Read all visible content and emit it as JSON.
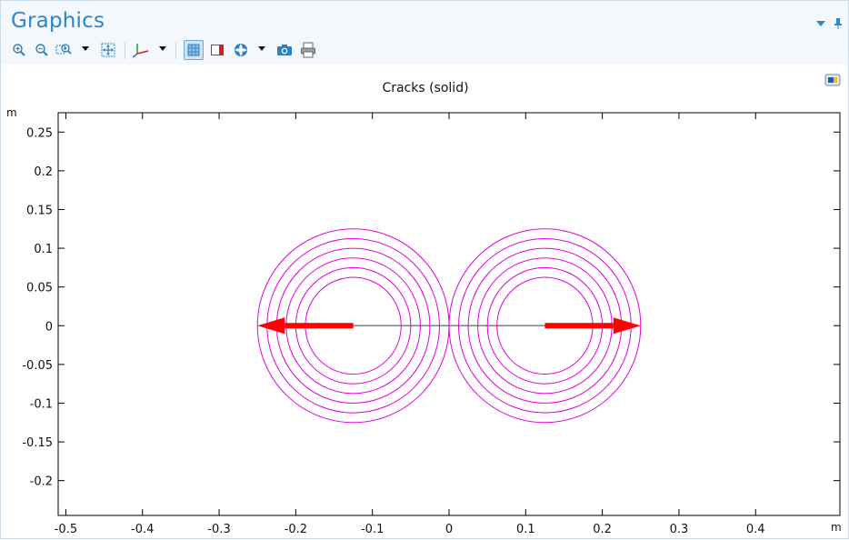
{
  "panel": {
    "title": "Graphics",
    "pin_icon": "pin-icon",
    "menu_icon": "dropdown-arrow-icon"
  },
  "toolbar": {
    "buttons": [
      {
        "name": "zoom-in-icon"
      },
      {
        "name": "zoom-out-icon"
      },
      {
        "name": "zoom-box-icon",
        "dropdown": true
      },
      {
        "name": "zoom-extents-icon"
      },
      {
        "name": "axis-orientation-icon",
        "dropdown": true
      },
      {
        "name": "show-grid-icon",
        "selected": true
      },
      {
        "name": "legend-icon"
      },
      {
        "name": "scene-light-icon",
        "dropdown": true
      },
      {
        "name": "camera-icon"
      },
      {
        "name": "print-icon"
      }
    ]
  },
  "plot": {
    "title": "Cracks (solid)",
    "y_unit": "m",
    "x_unit": "m",
    "colors": {
      "contour": "#e000e0",
      "arrow": "#ff0000",
      "crack_line": "#808080",
      "axis": "#000000"
    }
  },
  "chart_data": {
    "type": "scatter",
    "title": "Cracks (solid)",
    "xlabel": "m",
    "ylabel": "m",
    "xlim": [
      -0.51,
      0.51
    ],
    "ylim": [
      -0.245,
      0.275
    ],
    "xticks": [
      -0.5,
      -0.4,
      -0.3,
      -0.2,
      -0.1,
      0,
      0.1,
      0.2,
      0.3,
      0.4
    ],
    "xtick_labels": [
      "-0.5",
      "-0.4",
      "-0.3",
      "-0.2",
      "-0.1",
      "0",
      "0.1",
      "0.2",
      "0.3",
      "0.4"
    ],
    "yticks": [
      0.25,
      0.2,
      0.15,
      0.1,
      0.05,
      0,
      -0.05,
      -0.1,
      -0.15,
      -0.2
    ],
    "ytick_labels": [
      "0.25",
      "0.2",
      "0.15",
      "0.1",
      "0.05",
      "0",
      "-0.05",
      "-0.1",
      "-0.15",
      "-0.2"
    ],
    "crack_segment": {
      "x": [
        -0.125,
        0.125
      ],
      "y": [
        0,
        0
      ]
    },
    "circle_groups": [
      {
        "center": [
          -0.125,
          0
        ],
        "radii": [
          0.0625,
          0.075,
          0.0875,
          0.1,
          0.1125,
          0.125
        ]
      },
      {
        "center": [
          0.125,
          0
        ],
        "radii": [
          0.0625,
          0.075,
          0.0875,
          0.1,
          0.1125,
          0.125
        ]
      }
    ],
    "arrows": [
      {
        "from": [
          -0.125,
          0
        ],
        "to": [
          -0.25,
          0
        ]
      },
      {
        "from": [
          0.125,
          0
        ],
        "to": [
          0.25,
          0
        ]
      }
    ]
  }
}
